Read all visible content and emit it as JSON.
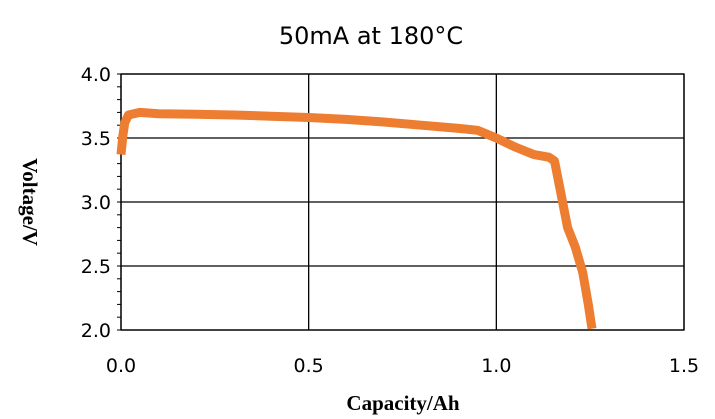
{
  "chart_data": {
    "type": "line",
    "title": "50mA at 180°C",
    "xlabel": "Capacity/Ah",
    "ylabel": "Voltage/V",
    "xlim": [
      0.0,
      1.5
    ],
    "ylim": [
      2.0,
      4.0
    ],
    "x_ticks": [
      "0.0",
      "0.5",
      "1.0",
      "1.5"
    ],
    "y_ticks": [
      "2.0",
      "2.5",
      "3.0",
      "3.5",
      "4.0"
    ],
    "grid": true,
    "color": "#ED7D31",
    "series": [
      {
        "x": [
          0.0,
          0.005,
          0.01,
          0.02,
          0.05,
          0.1,
          0.2,
          0.3,
          0.4,
          0.5,
          0.6,
          0.7,
          0.8,
          0.9,
          0.95,
          1.0,
          1.05,
          1.1,
          1.14,
          1.155,
          1.17,
          1.19,
          1.21,
          1.23,
          1.245,
          1.255
        ],
        "y": [
          3.37,
          3.52,
          3.62,
          3.68,
          3.7,
          3.69,
          3.685,
          3.68,
          3.67,
          3.66,
          3.645,
          3.625,
          3.6,
          3.575,
          3.56,
          3.5,
          3.43,
          3.37,
          3.35,
          3.32,
          3.1,
          2.8,
          2.65,
          2.45,
          2.2,
          2.01
        ]
      }
    ]
  }
}
